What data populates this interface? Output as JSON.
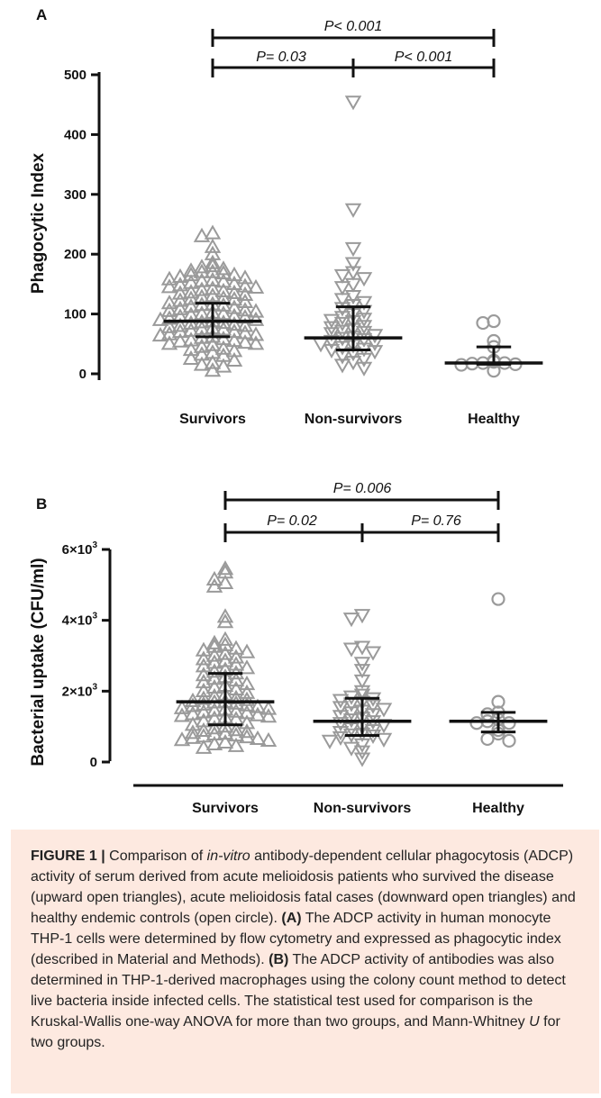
{
  "chart_data": [
    {
      "type": "scatter",
      "panel": "A",
      "ylabel": "Phagocytic Index",
      "ylim": [
        0,
        500
      ],
      "yticks": [
        {
          "v": 0,
          "label": "0"
        },
        {
          "v": 100,
          "label": "100"
        },
        {
          "v": 200,
          "label": "200"
        },
        {
          "v": 300,
          "label": "300"
        },
        {
          "v": 400,
          "label": "400"
        },
        {
          "v": 500,
          "label": "500"
        }
      ],
      "categories": [
        "Survivors",
        "Non-survivors",
        "Healthy"
      ],
      "series": [
        {
          "marker": "triangle-up",
          "values": [
            235,
            230,
            212,
            200,
            185,
            180,
            178,
            175,
            172,
            170,
            170,
            168,
            165,
            165,
            162,
            160,
            158,
            156,
            155,
            154,
            152,
            150,
            148,
            146,
            145,
            144,
            142,
            140,
            138,
            136,
            135,
            134,
            132,
            130,
            128,
            126,
            125,
            124,
            122,
            120,
            118,
            116,
            115,
            114,
            112,
            110,
            108,
            106,
            105,
            104,
            102,
            100,
            100,
            98,
            96,
            95,
            94,
            92,
            90,
            90,
            88,
            86,
            85,
            84,
            82,
            80,
            80,
            78,
            76,
            75,
            74,
            72,
            70,
            70,
            68,
            66,
            65,
            64,
            62,
            60,
            58,
            56,
            55,
            54,
            52,
            50,
            50,
            48,
            45,
            42,
            40,
            38,
            35,
            32,
            30,
            25,
            22,
            18,
            15,
            12,
            5
          ]
        },
        {
          "marker": "triangle-down",
          "values": [
            455,
            275,
            210,
            185,
            170,
            165,
            160,
            150,
            145,
            130,
            125,
            120,
            115,
            110,
            105,
            100,
            95,
            92,
            90,
            88,
            85,
            80,
            78,
            75,
            72,
            70,
            68,
            65,
            62,
            60,
            58,
            55,
            52,
            50,
            48,
            45,
            42,
            40,
            38,
            35,
            30,
            25,
            20,
            15,
            10
          ]
        },
        {
          "marker": "circle",
          "values": [
            88,
            85,
            55,
            45,
            22,
            20,
            18,
            18,
            17,
            16,
            15,
            5
          ]
        }
      ],
      "summary": [
        {
          "median": 88,
          "q1": 62,
          "q3": 118
        },
        {
          "median": 60,
          "q1": 40,
          "q3": 112
        },
        {
          "median": 18,
          "q1": 16,
          "q3": 45
        }
      ],
      "annotations": {
        "overall": "P< 0.001",
        "left": "P= 0.03",
        "right": "P< 0.001"
      }
    },
    {
      "type": "scatter",
      "panel": "B",
      "ylabel": "Bacterial uptake (CFU/ml)",
      "ylim": [
        0,
        6000
      ],
      "yticks": [
        {
          "v": 0,
          "mant": "0",
          "exp": ""
        },
        {
          "v": 2000,
          "mant": "2×10",
          "exp": "3"
        },
        {
          "v": 4000,
          "mant": "4×10",
          "exp": "3"
        },
        {
          "v": 6000,
          "mant": "6×10",
          "exp": "3"
        }
      ],
      "categories": [
        "Survivors",
        "Non-survivors",
        "Healthy"
      ],
      "series": [
        {
          "marker": "triangle-up",
          "values": [
            5450,
            5350,
            5150,
            5050,
            4950,
            4100,
            3950,
            3450,
            3350,
            3300,
            3250,
            3200,
            3150,
            3100,
            3050,
            3000,
            2950,
            2900,
            2850,
            2800,
            2750,
            2700,
            2650,
            2600,
            2550,
            2500,
            2450,
            2400,
            2350,
            2300,
            2250,
            2200,
            2150,
            2100,
            2050,
            2000,
            1950,
            1900,
            1850,
            1800,
            1780,
            1750,
            1720,
            1700,
            1680,
            1650,
            1620,
            1600,
            1580,
            1550,
            1520,
            1500,
            1480,
            1450,
            1420,
            1400,
            1380,
            1350,
            1320,
            1300,
            1280,
            1250,
            1220,
            1200,
            1150,
            1100,
            1050,
            1000,
            950,
            900,
            880,
            850,
            820,
            800,
            780,
            750,
            720,
            700,
            680,
            650,
            620,
            600,
            550,
            500,
            450,
            400
          ]
        },
        {
          "marker": "triangle-down",
          "values": [
            4150,
            4050,
            3250,
            3200,
            3100,
            2800,
            2600,
            2300,
            2000,
            1900,
            1850,
            1800,
            1750,
            1700,
            1650,
            1600,
            1550,
            1500,
            1450,
            1400,
            1350,
            1300,
            1250,
            1200,
            1150,
            1100,
            1050,
            1000,
            950,
            900,
            850,
            800,
            780,
            750,
            700,
            650,
            600,
            500,
            400,
            300,
            100
          ]
        },
        {
          "marker": "circle",
          "values": [
            4600,
            1700,
            1400,
            1350,
            1200,
            1150,
            1100,
            1100,
            900,
            800,
            650,
            600
          ]
        }
      ],
      "summary": [
        {
          "median": 1700,
          "q1": 1050,
          "q3": 2500
        },
        {
          "median": 1150,
          "q1": 750,
          "q3": 1800
        },
        {
          "median": 1150,
          "q1": 850,
          "q3": 1400
        }
      ],
      "annotations": {
        "overall": "P= 0.006",
        "left": "P= 0.02",
        "right": "P= 0.76"
      }
    }
  ],
  "caption": {
    "fig_label": "FIGURE 1 |",
    "t1": " Comparison of ",
    "t1_italic": "in-vitro",
    "t2": " antibody-dependent cellular phagocytosis (ADCP) activity of serum derived from acute melioidosis patients who survived the disease (upward open triangles), acute melioidosis fatal cases (downward open triangles) and healthy endemic controls (open circle). ",
    "ref_a": "(A)",
    "t3": " The ADCP activity in human monocyte THP-1 cells were determined by flow cytometry and expressed as phagocytic index (described in Material and Methods). ",
    "ref_b": "(B)",
    "t4": " The ADCP activity of antibodies was also determined in THP-1-derived macrophages using the colony count method to detect live bacteria inside infected cells. The statistical test used for comparison is the Kruskal-Wallis one-way ANOVA for more than two groups, and Mann-Whitney ",
    "t4_italic": "U",
    "t5": " for two groups."
  },
  "colors": {
    "marker": "#9a9a9a",
    "line": "#111111",
    "caption_bg": "#fde9e0"
  }
}
